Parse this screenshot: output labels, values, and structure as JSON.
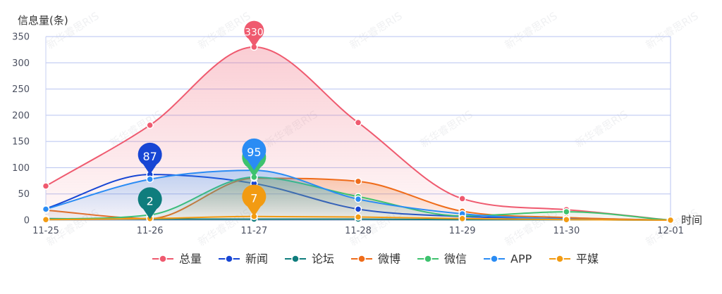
{
  "chart_data": {
    "type": "line",
    "ylabel": "信息量(条)",
    "xlabel": "时间",
    "categories": [
      "11-25",
      "11-26",
      "11-27",
      "11-28",
      "11-29",
      "11-30",
      "12-01"
    ],
    "ylim": [
      0,
      350
    ],
    "yticks": [
      0,
      50,
      100,
      150,
      200,
      250,
      300,
      350
    ],
    "grid": true,
    "legend_position": "bottom",
    "series": [
      {
        "name": "总量",
        "color": "#ef5a6f",
        "values": [
          65,
          181,
          330,
          186,
          41,
          20,
          0
        ],
        "area": true
      },
      {
        "name": "新闻",
        "color": "#1746d4",
        "values": [
          22,
          87,
          70,
          21,
          7,
          3,
          0
        ],
        "area": false
      },
      {
        "name": "论坛",
        "color": "#0f7d7d",
        "values": [
          3,
          2,
          2,
          2,
          1,
          1,
          0
        ],
        "area": false
      },
      {
        "name": "微博",
        "color": "#ef6c1a",
        "values": [
          19,
          3,
          80,
          74,
          17,
          5,
          0
        ],
        "area": true
      },
      {
        "name": "微信",
        "color": "#3ec26e",
        "values": [
          2,
          10,
          82,
          45,
          8,
          16,
          0
        ],
        "area": true
      },
      {
        "name": "APP",
        "color": "#2a8cf4",
        "values": [
          21,
          78,
          95,
          40,
          12,
          2,
          0
        ],
        "area": true
      },
      {
        "name": "平媒",
        "color": "#f29b12",
        "values": [
          1,
          3,
          7,
          6,
          3,
          1,
          0
        ],
        "area": false
      }
    ],
    "markers": [
      {
        "series": 0,
        "index": 2,
        "label": "330",
        "color": "#ef5a6f",
        "size": "small"
      },
      {
        "series": 1,
        "index": 1,
        "label": "87",
        "color": "#1746d4",
        "size": "large"
      },
      {
        "series": 2,
        "index": 1,
        "label": "2",
        "color": "#0f7d7d",
        "size": "large"
      },
      {
        "series": 4,
        "index": 2,
        "label": "",
        "color": "#3ec26e",
        "size": "large"
      },
      {
        "series": 5,
        "index": 2,
        "label": "95",
        "color": "#2a8cf4",
        "size": "large"
      },
      {
        "series": 6,
        "index": 2,
        "label": "7",
        "color": "#f29b12",
        "size": "large"
      }
    ],
    "watermark": "新华睿思RIS"
  }
}
